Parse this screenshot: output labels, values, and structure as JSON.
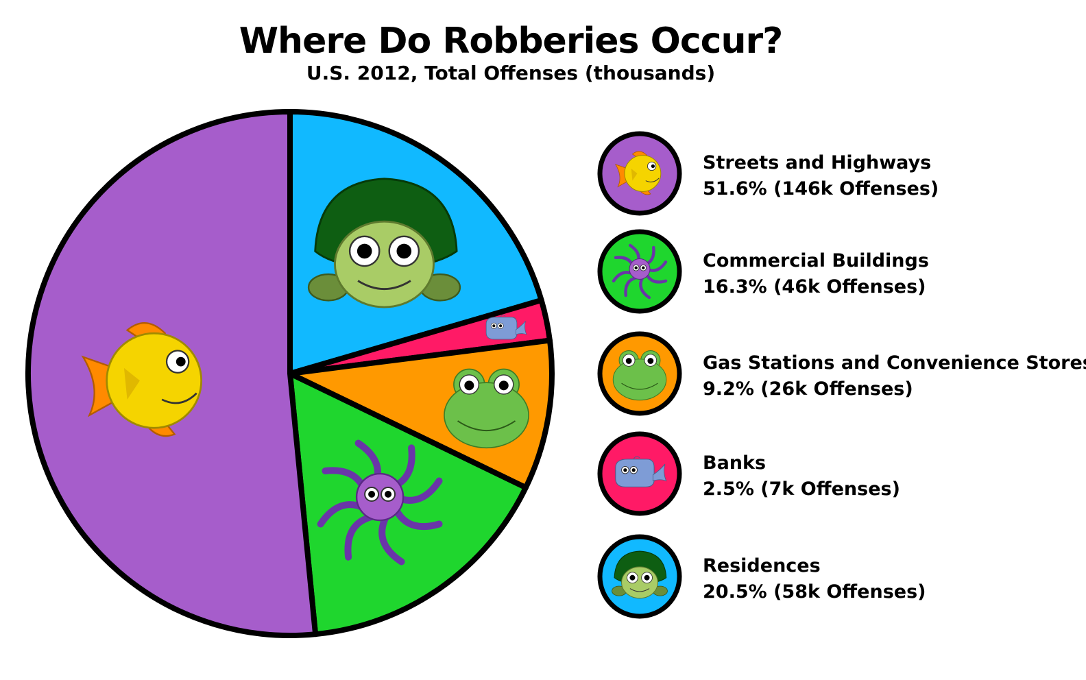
{
  "colors": {
    "streets": "#A65DCB",
    "commercial": "#1FD62E",
    "gas": "#FF9900",
    "banks": "#FF1A66",
    "residences": "#11B9FF",
    "outline": "#000000"
  },
  "chart_data": {
    "type": "pie",
    "title": "Where Do Robberies Occur?",
    "subtitle": "U.S. 2012, Total Offenses (thousands)",
    "legend_position": "right",
    "slices": [
      {
        "label": "Streets and Highways",
        "percent": 51.6,
        "offenses_thousands": 146,
        "value_text": "51.6% (146k Offenses)",
        "color": "#A65DCB",
        "icon": "fish-icon"
      },
      {
        "label": "Commercial Buildings",
        "percent": 16.3,
        "offenses_thousands": 46,
        "value_text": "16.3% (46k Offenses)",
        "color": "#1FD62E",
        "icon": "octopus-icon"
      },
      {
        "label": "Gas Stations and Convenience Stores",
        "percent": 9.2,
        "offenses_thousands": 26,
        "value_text": "9.2% (26k Offenses)",
        "color": "#FF9900",
        "icon": "frog-icon"
      },
      {
        "label": "Banks",
        "percent": 2.5,
        "offenses_thousands": 7,
        "value_text": "2.5% (7k Offenses)",
        "color": "#FF1A66",
        "icon": "whale-icon"
      },
      {
        "label": "Residences",
        "percent": 20.5,
        "offenses_thousands": 58,
        "value_text": "20.5% (58k Offenses)",
        "color": "#11B9FF",
        "icon": "turtle-icon"
      }
    ]
  }
}
